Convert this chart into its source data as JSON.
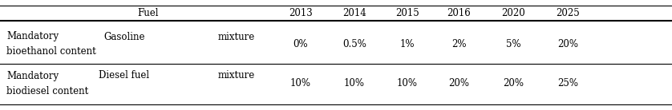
{
  "col_headers": [
    "Fuel",
    "2013",
    "2014",
    "2015",
    "2016",
    "2020",
    "2025"
  ],
  "row1_label": "Mandatory     Gasoline     mixture\nbioethanol content",
  "row1_values": [
    "0%",
    "0.5%",
    "1%",
    "2%",
    "5%",
    "20%"
  ],
  "row2_label": "Mandatory     Diesel fuel     mixture\nbiodiesel content",
  "row2_values": [
    "10%",
    "10%",
    "10%",
    "20%",
    "20%",
    "25%"
  ],
  "years": [
    "2013",
    "2014",
    "2015",
    "2016",
    "2020",
    "2025"
  ],
  "bg_color": "#ffffff",
  "text_color": "#000000",
  "font_size": 8.5
}
